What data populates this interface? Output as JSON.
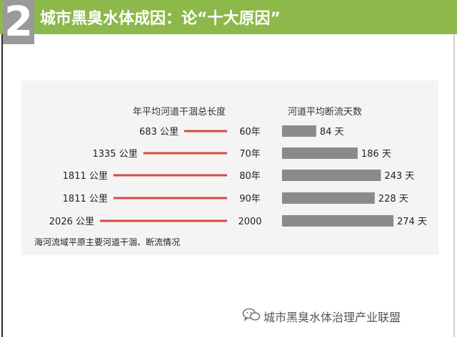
{
  "header": {
    "number": "2",
    "title": "城市黑臭水体成因：论“十大原因”"
  },
  "chart_data": {
    "type": "bar",
    "categories": [
      "60年",
      "70年",
      "80年",
      "90年",
      "2000"
    ],
    "series": [
      {
        "name": "年平均河道干涸总长度",
        "unit": "公里",
        "values": [
          683,
          1335,
          1811,
          1811,
          2026
        ],
        "labels": [
          "683 公里",
          "1335 公里",
          "1811 公里",
          "1811 公里",
          "2026 公里"
        ],
        "color": "#d64a3f"
      },
      {
        "name": "河道平均断流天数",
        "unit": "天",
        "values": [
          84,
          186,
          243,
          228,
          274
        ],
        "labels": [
          "84 天",
          "186 天",
          "243 天",
          "228 天",
          "274 天"
        ],
        "color": "#8a8a8a"
      }
    ],
    "caption": "海河流域平原主要河道干涸、断流情况"
  },
  "footer": {
    "text": "城市黑臭水体治理产业联盟",
    "icon": "wechat-icon"
  }
}
